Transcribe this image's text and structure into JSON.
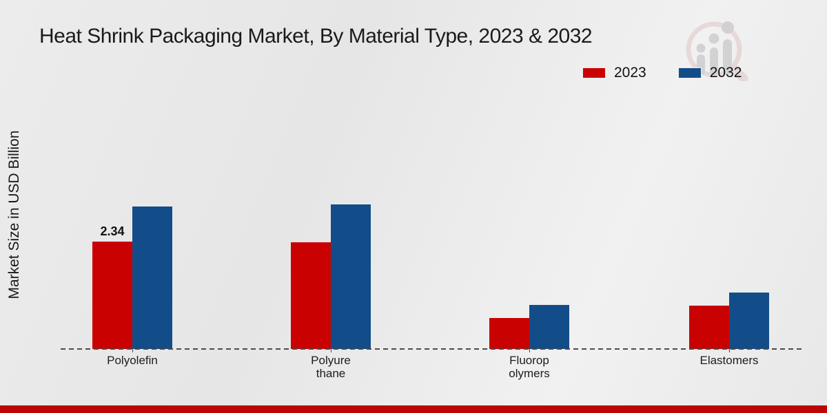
{
  "title": "Heat Shrink Packaging Market, By Material Type, 2023 & 2032",
  "colors": {
    "series_2023": "#c90201",
    "series_2032": "#134d89",
    "footer_bar": "#bb0604",
    "baseline": "#4a4a4a",
    "logo_ring": "#dcbcbd",
    "logo_bars": "#c9c9cb"
  },
  "legend": {
    "items": [
      {
        "label": "2023",
        "color": "#c90201"
      },
      {
        "label": "2032",
        "color": "#134d89"
      }
    ]
  },
  "chart_data": {
    "type": "bar",
    "title": "Heat Shrink Packaging Market, By Material Type, 2023 & 2032",
    "xlabel": "",
    "ylabel": "Market Size in USD Billion",
    "categories": [
      "Polyolefin",
      "Polyure\nthane",
      "Fluorop\nolymers",
      "Elastomers"
    ],
    "series": [
      {
        "name": "2023",
        "color": "#c90201",
        "values": [
          2.34,
          2.32,
          0.67,
          0.94
        ]
      },
      {
        "name": "2032",
        "color": "#134d89",
        "values": [
          3.1,
          3.15,
          0.96,
          1.23
        ]
      }
    ],
    "bar_labels": [
      {
        "series_index": 0,
        "category_index": 0,
        "text": "2.34"
      }
    ],
    "ylim": [
      0,
      3.5
    ],
    "grid": false,
    "legend_position": "top-right",
    "baseline_style": "dashed"
  },
  "logo": {
    "name": "market-research-watermark"
  }
}
